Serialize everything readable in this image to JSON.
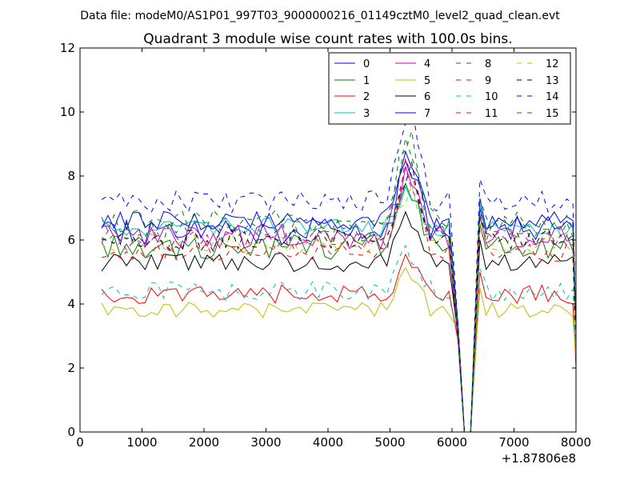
{
  "chart_data": {
    "type": "line",
    "suptitle": "Data file: modeM0/AS1P01_997T03_9000000216_01149cztM0_level2_quad_clean.evt",
    "title": "Quadrant 3 module wise count rates with 100.0s bins.",
    "xlabel": "",
    "ylabel": "",
    "xlim": [
      0,
      8000
    ],
    "ylim": [
      0,
      12
    ],
    "x_offset_label": "+1.87806e8",
    "x_ticks": [
      0,
      1000,
      2000,
      3000,
      4000,
      5000,
      6000,
      7000,
      8000
    ],
    "x_tick_labels": [
      "0",
      "1000",
      "2000",
      "3000",
      "4000",
      "5000",
      "6000",
      "7000",
      "8000"
    ],
    "y_ticks": [
      0,
      2,
      4,
      6,
      8,
      10,
      12
    ],
    "y_tick_labels": [
      "0",
      "2",
      "4",
      "6",
      "8",
      "10",
      "12"
    ],
    "grid": false,
    "legend_position": "top-right",
    "legend_columns": 4,
    "x_start": 350,
    "x_step": 100,
    "time_axis_shape": {
      "gap_points": [
        6100,
        6200,
        6300
      ],
      "gap_values": [
        3.0,
        0,
        0
      ],
      "final_point": 8000
    },
    "series": [
      {
        "name": "0",
        "color": "#0000ff",
        "dashed": false,
        "base": 6.3,
        "amp": 0.45,
        "peak": 8.3
      },
      {
        "name": "1",
        "color": "#008000",
        "dashed": false,
        "base": 5.8,
        "amp": 0.4,
        "peak": 7.6
      },
      {
        "name": "2",
        "color": "#ff0000",
        "dashed": false,
        "base": 4.3,
        "amp": 0.3,
        "peak": 5.4
      },
      {
        "name": "3",
        "color": "#00bfbf",
        "dashed": false,
        "base": 6.4,
        "amp": 0.3,
        "peak": 7.5
      },
      {
        "name": "4",
        "color": "#bf00bf",
        "dashed": false,
        "base": 6.1,
        "amp": 0.4,
        "peak": 8.1
      },
      {
        "name": "5",
        "color": "#bfbf00",
        "dashed": false,
        "base": 3.8,
        "amp": 0.25,
        "peak": 5.0
      },
      {
        "name": "6",
        "color": "#000000",
        "dashed": false,
        "base": 5.3,
        "amp": 0.3,
        "peak": 6.7
      },
      {
        "name": "7",
        "color": "#0000ff",
        "dashed": false,
        "base": 6.6,
        "amp": 0.3,
        "peak": 8.6
      },
      {
        "name": "8",
        "color": "#008000",
        "dashed": true,
        "base": 6.3,
        "amp": 0.35,
        "peak": 9.0
      },
      {
        "name": "9",
        "color": "#ff0000",
        "dashed": true,
        "base": 5.6,
        "amp": 0.3,
        "peak": 8.4
      },
      {
        "name": "10",
        "color": "#00bfbf",
        "dashed": true,
        "base": 4.4,
        "amp": 0.3,
        "peak": 5.6
      },
      {
        "name": "11",
        "color": "#bf00bf",
        "dashed": true,
        "base": 6.0,
        "amp": 0.35,
        "peak": 8.0
      },
      {
        "name": "12",
        "color": "#bfbf00",
        "dashed": true,
        "base": 5.9,
        "amp": 0.3,
        "peak": 7.5
      },
      {
        "name": "13",
        "color": "#000000",
        "dashed": true,
        "base": 6.0,
        "amp": 0.35,
        "peak": 8.2
      },
      {
        "name": "14",
        "color": "#0000ff",
        "dashed": true,
        "base": 7.2,
        "amp": 0.35,
        "peak": 10.1
      },
      {
        "name": "15",
        "color": "#008000",
        "dashed": true,
        "base": 6.6,
        "amp": 0.35,
        "peak": 9.2
      }
    ]
  }
}
